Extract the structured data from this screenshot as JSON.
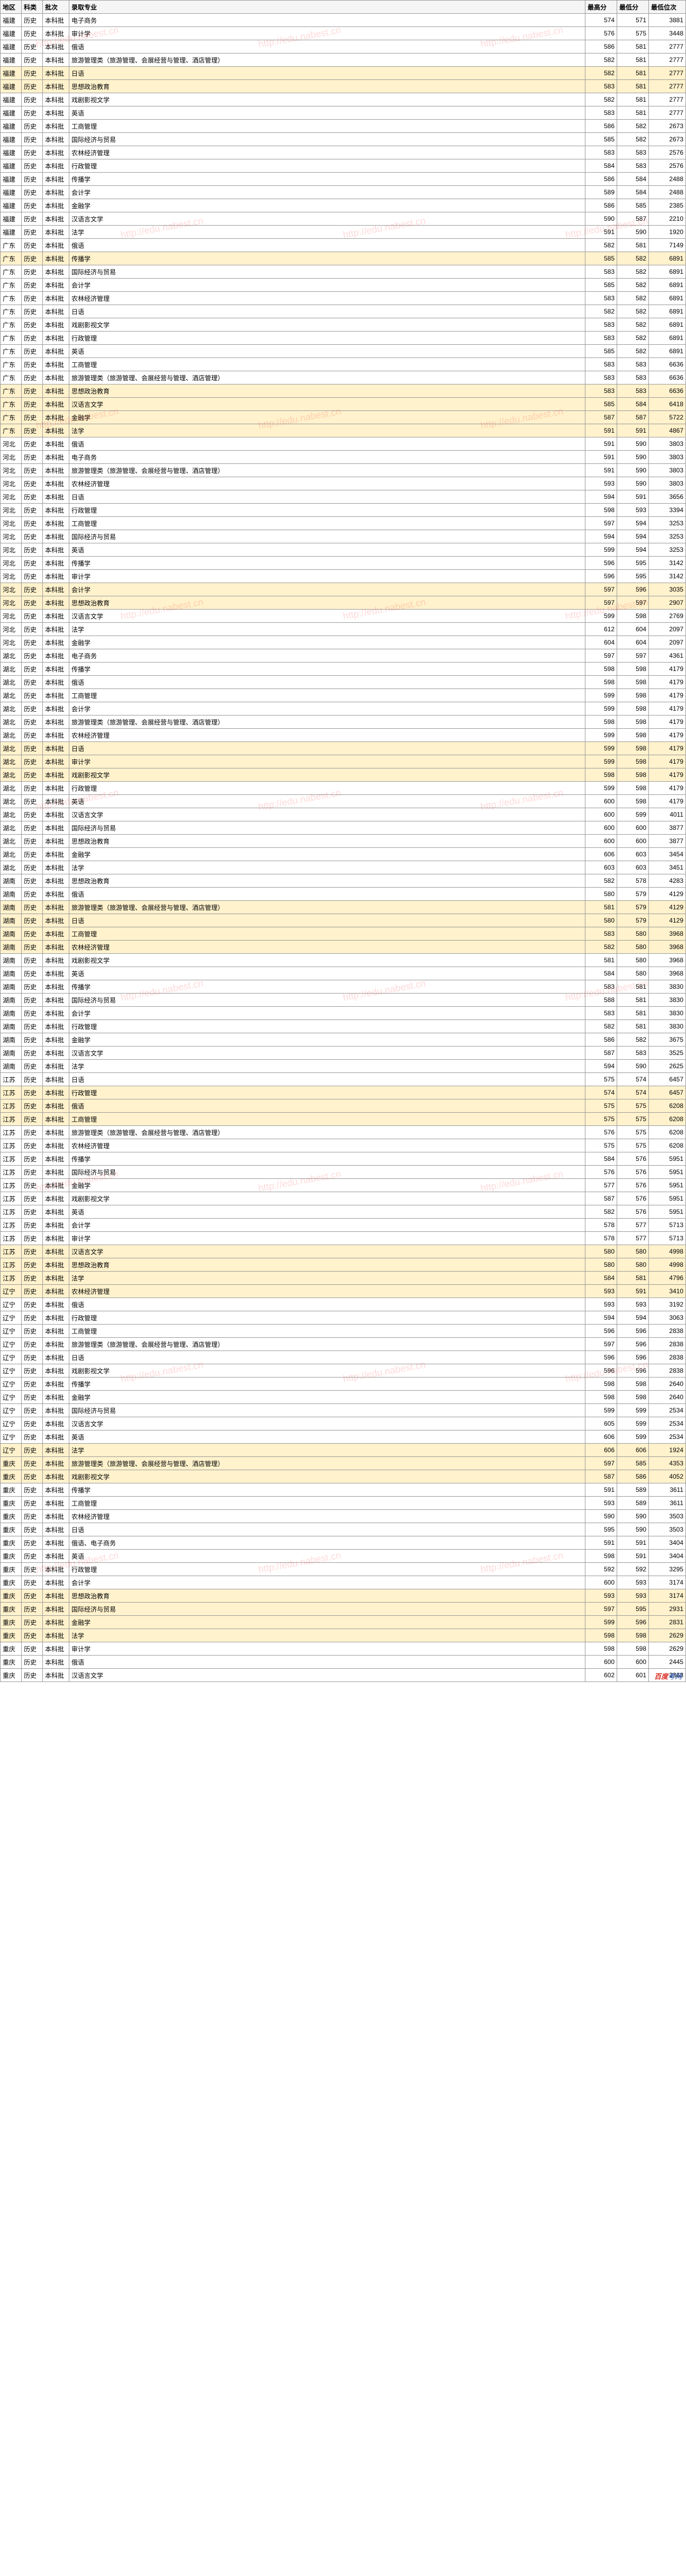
{
  "watermark_text": "http://edu.nabest.cn",
  "logo": {
    "text1": "百度",
    "text2": "考网"
  },
  "header": {
    "region": "地区",
    "subject": "科类",
    "batch": "批次",
    "major": "录取专业",
    "high": "最高分",
    "low": "最低分",
    "rank": "最低位次"
  },
  "rows": [
    {
      "r": "福建",
      "s": "历史",
      "b": "本科批",
      "m": "电子商务",
      "h": "574",
      "l": "571",
      "k": "3881"
    },
    {
      "r": "福建",
      "s": "历史",
      "b": "本科批",
      "m": "审计学",
      "h": "576",
      "l": "575",
      "k": "3448"
    },
    {
      "r": "福建",
      "s": "历史",
      "b": "本科批",
      "m": "俄语",
      "h": "586",
      "l": "581",
      "k": "2777"
    },
    {
      "r": "福建",
      "s": "历史",
      "b": "本科批",
      "m": "旅游管理类（旅游管理、会展经营与管理、酒店管理）",
      "h": "582",
      "l": "581",
      "k": "2777"
    },
    {
      "r": "福建",
      "s": "历史",
      "b": "本科批",
      "m": "日语",
      "h": "582",
      "l": "581",
      "k": "2777",
      "hl": 1
    },
    {
      "r": "福建",
      "s": "历史",
      "b": "本科批",
      "m": "思想政治教育",
      "h": "583",
      "l": "581",
      "k": "2777",
      "hl": 1
    },
    {
      "r": "福建",
      "s": "历史",
      "b": "本科批",
      "m": "戏剧影视文学",
      "h": "582",
      "l": "581",
      "k": "2777"
    },
    {
      "r": "福建",
      "s": "历史",
      "b": "本科批",
      "m": "英语",
      "h": "583",
      "l": "581",
      "k": "2777"
    },
    {
      "r": "福建",
      "s": "历史",
      "b": "本科批",
      "m": "工商管理",
      "h": "586",
      "l": "582",
      "k": "2673"
    },
    {
      "r": "福建",
      "s": "历史",
      "b": "本科批",
      "m": "国际经济与贸易",
      "h": "585",
      "l": "582",
      "k": "2673"
    },
    {
      "r": "福建",
      "s": "历史",
      "b": "本科批",
      "m": "农林经济管理",
      "h": "583",
      "l": "583",
      "k": "2576"
    },
    {
      "r": "福建",
      "s": "历史",
      "b": "本科批",
      "m": "行政管理",
      "h": "584",
      "l": "583",
      "k": "2576"
    },
    {
      "r": "福建",
      "s": "历史",
      "b": "本科批",
      "m": "传播学",
      "h": "586",
      "l": "584",
      "k": "2488"
    },
    {
      "r": "福建",
      "s": "历史",
      "b": "本科批",
      "m": "会计学",
      "h": "589",
      "l": "584",
      "k": "2488"
    },
    {
      "r": "福建",
      "s": "历史",
      "b": "本科批",
      "m": "金融学",
      "h": "586",
      "l": "585",
      "k": "2385"
    },
    {
      "r": "福建",
      "s": "历史",
      "b": "本科批",
      "m": "汉语言文学",
      "h": "590",
      "l": "587",
      "k": "2210"
    },
    {
      "r": "福建",
      "s": "历史",
      "b": "本科批",
      "m": "法学",
      "h": "591",
      "l": "590",
      "k": "1920"
    },
    {
      "r": "广东",
      "s": "历史",
      "b": "本科批",
      "m": "俄语",
      "h": "582",
      "l": "581",
      "k": "7149"
    },
    {
      "r": "广东",
      "s": "历史",
      "b": "本科批",
      "m": "传播学",
      "h": "585",
      "l": "582",
      "k": "6891",
      "hl": 1
    },
    {
      "r": "广东",
      "s": "历史",
      "b": "本科批",
      "m": "国际经济与贸易",
      "h": "583",
      "l": "582",
      "k": "6891"
    },
    {
      "r": "广东",
      "s": "历史",
      "b": "本科批",
      "m": "会计学",
      "h": "585",
      "l": "582",
      "k": "6891"
    },
    {
      "r": "广东",
      "s": "历史",
      "b": "本科批",
      "m": "农林经济管理",
      "h": "583",
      "l": "582",
      "k": "6891"
    },
    {
      "r": "广东",
      "s": "历史",
      "b": "本科批",
      "m": "日语",
      "h": "582",
      "l": "582",
      "k": "6891"
    },
    {
      "r": "广东",
      "s": "历史",
      "b": "本科批",
      "m": "戏剧影视文学",
      "h": "583",
      "l": "582",
      "k": "6891"
    },
    {
      "r": "广东",
      "s": "历史",
      "b": "本科批",
      "m": "行政管理",
      "h": "583",
      "l": "582",
      "k": "6891"
    },
    {
      "r": "广东",
      "s": "历史",
      "b": "本科批",
      "m": "英语",
      "h": "585",
      "l": "582",
      "k": "6891"
    },
    {
      "r": "广东",
      "s": "历史",
      "b": "本科批",
      "m": "工商管理",
      "h": "583",
      "l": "583",
      "k": "6636"
    },
    {
      "r": "广东",
      "s": "历史",
      "b": "本科批",
      "m": "旅游管理类（旅游管理、会展经营与管理、酒店管理）",
      "h": "583",
      "l": "583",
      "k": "6636"
    },
    {
      "r": "广东",
      "s": "历史",
      "b": "本科批",
      "m": "思想政治教育",
      "h": "583",
      "l": "583",
      "k": "6636",
      "hl": 1
    },
    {
      "r": "广东",
      "s": "历史",
      "b": "本科批",
      "m": "汉语言文学",
      "h": "585",
      "l": "584",
      "k": "6418",
      "hl": 1
    },
    {
      "r": "广东",
      "s": "历史",
      "b": "本科批",
      "m": "金融学",
      "h": "587",
      "l": "587",
      "k": "5722",
      "hl": 1
    },
    {
      "r": "广东",
      "s": "历史",
      "b": "本科批",
      "m": "法学",
      "h": "591",
      "l": "591",
      "k": "4867",
      "hl": 1
    },
    {
      "r": "河北",
      "s": "历史",
      "b": "本科批",
      "m": "俄语",
      "h": "591",
      "l": "590",
      "k": "3803"
    },
    {
      "r": "河北",
      "s": "历史",
      "b": "本科批",
      "m": "电子商务",
      "h": "591",
      "l": "590",
      "k": "3803"
    },
    {
      "r": "河北",
      "s": "历史",
      "b": "本科批",
      "m": "旅游管理类（旅游管理、会展经营与管理、酒店管理）",
      "h": "591",
      "l": "590",
      "k": "3803"
    },
    {
      "r": "河北",
      "s": "历史",
      "b": "本科批",
      "m": "农林经济管理",
      "h": "593",
      "l": "590",
      "k": "3803"
    },
    {
      "r": "河北",
      "s": "历史",
      "b": "本科批",
      "m": "日语",
      "h": "594",
      "l": "591",
      "k": "3656"
    },
    {
      "r": "河北",
      "s": "历史",
      "b": "本科批",
      "m": "行政管理",
      "h": "598",
      "l": "593",
      "k": "3394"
    },
    {
      "r": "河北",
      "s": "历史",
      "b": "本科批",
      "m": "工商管理",
      "h": "597",
      "l": "594",
      "k": "3253"
    },
    {
      "r": "河北",
      "s": "历史",
      "b": "本科批",
      "m": "国际经济与贸易",
      "h": "594",
      "l": "594",
      "k": "3253"
    },
    {
      "r": "河北",
      "s": "历史",
      "b": "本科批",
      "m": "英语",
      "h": "599",
      "l": "594",
      "k": "3253"
    },
    {
      "r": "河北",
      "s": "历史",
      "b": "本科批",
      "m": "传播学",
      "h": "596",
      "l": "595",
      "k": "3142"
    },
    {
      "r": "河北",
      "s": "历史",
      "b": "本科批",
      "m": "审计学",
      "h": "596",
      "l": "595",
      "k": "3142"
    },
    {
      "r": "河北",
      "s": "历史",
      "b": "本科批",
      "m": "会计学",
      "h": "597",
      "l": "596",
      "k": "3035",
      "hl": 1
    },
    {
      "r": "河北",
      "s": "历史",
      "b": "本科批",
      "m": "思想政治教育",
      "h": "597",
      "l": "597",
      "k": "2907",
      "hl": 1
    },
    {
      "r": "河北",
      "s": "历史",
      "b": "本科批",
      "m": "汉语言文学",
      "h": "599",
      "l": "598",
      "k": "2769"
    },
    {
      "r": "河北",
      "s": "历史",
      "b": "本科批",
      "m": "法学",
      "h": "612",
      "l": "604",
      "k": "2097"
    },
    {
      "r": "河北",
      "s": "历史",
      "b": "本科批",
      "m": "金融学",
      "h": "604",
      "l": "604",
      "k": "2097"
    },
    {
      "r": "湖北",
      "s": "历史",
      "b": "本科批",
      "m": "电子商务",
      "h": "597",
      "l": "597",
      "k": "4361"
    },
    {
      "r": "湖北",
      "s": "历史",
      "b": "本科批",
      "m": "传播学",
      "h": "598",
      "l": "598",
      "k": "4179"
    },
    {
      "r": "湖北",
      "s": "历史",
      "b": "本科批",
      "m": "俄语",
      "h": "598",
      "l": "598",
      "k": "4179"
    },
    {
      "r": "湖北",
      "s": "历史",
      "b": "本科批",
      "m": "工商管理",
      "h": "599",
      "l": "598",
      "k": "4179"
    },
    {
      "r": "湖北",
      "s": "历史",
      "b": "本科批",
      "m": "会计学",
      "h": "599",
      "l": "598",
      "k": "4179"
    },
    {
      "r": "湖北",
      "s": "历史",
      "b": "本科批",
      "m": "旅游管理类（旅游管理、会展经营与管理、酒店管理）",
      "h": "598",
      "l": "598",
      "k": "4179"
    },
    {
      "r": "湖北",
      "s": "历史",
      "b": "本科批",
      "m": "农林经济管理",
      "h": "599",
      "l": "598",
      "k": "4179"
    },
    {
      "r": "湖北",
      "s": "历史",
      "b": "本科批",
      "m": "日语",
      "h": "599",
      "l": "598",
      "k": "4179",
      "hl": 1
    },
    {
      "r": "湖北",
      "s": "历史",
      "b": "本科批",
      "m": "审计学",
      "h": "599",
      "l": "598",
      "k": "4179",
      "hl": 1
    },
    {
      "r": "湖北",
      "s": "历史",
      "b": "本科批",
      "m": "戏剧影视文学",
      "h": "598",
      "l": "598",
      "k": "4179",
      "hl": 1
    },
    {
      "r": "湖北",
      "s": "历史",
      "b": "本科批",
      "m": "行政管理",
      "h": "599",
      "l": "598",
      "k": "4179"
    },
    {
      "r": "湖北",
      "s": "历史",
      "b": "本科批",
      "m": "英语",
      "h": "600",
      "l": "598",
      "k": "4179"
    },
    {
      "r": "湖北",
      "s": "历史",
      "b": "本科批",
      "m": "汉语言文学",
      "h": "600",
      "l": "599",
      "k": "4011"
    },
    {
      "r": "湖北",
      "s": "历史",
      "b": "本科批",
      "m": "国际经济与贸易",
      "h": "600",
      "l": "600",
      "k": "3877"
    },
    {
      "r": "湖北",
      "s": "历史",
      "b": "本科批",
      "m": "思想政治教育",
      "h": "600",
      "l": "600",
      "k": "3877"
    },
    {
      "r": "湖北",
      "s": "历史",
      "b": "本科批",
      "m": "金融学",
      "h": "606",
      "l": "603",
      "k": "3454"
    },
    {
      "r": "湖北",
      "s": "历史",
      "b": "本科批",
      "m": "法学",
      "h": "603",
      "l": "603",
      "k": "3451"
    },
    {
      "r": "湖南",
      "s": "历史",
      "b": "本科批",
      "m": "思想政治教育",
      "h": "582",
      "l": "578",
      "k": "4283"
    },
    {
      "r": "湖南",
      "s": "历史",
      "b": "本科批",
      "m": "俄语",
      "h": "580",
      "l": "579",
      "k": "4129"
    },
    {
      "r": "湖南",
      "s": "历史",
      "b": "本科批",
      "m": "旅游管理类（旅游管理、会展经营与管理、酒店管理）",
      "h": "581",
      "l": "579",
      "k": "4129",
      "hl": 1
    },
    {
      "r": "湖南",
      "s": "历史",
      "b": "本科批",
      "m": "日语",
      "h": "580",
      "l": "579",
      "k": "4129",
      "hl": 1
    },
    {
      "r": "湖南",
      "s": "历史",
      "b": "本科批",
      "m": "工商管理",
      "h": "583",
      "l": "580",
      "k": "3968",
      "hl": 1
    },
    {
      "r": "湖南",
      "s": "历史",
      "b": "本科批",
      "m": "农林经济管理",
      "h": "582",
      "l": "580",
      "k": "3968",
      "hl": 1
    },
    {
      "r": "湖南",
      "s": "历史",
      "b": "本科批",
      "m": "戏剧影视文学",
      "h": "581",
      "l": "580",
      "k": "3968"
    },
    {
      "r": "湖南",
      "s": "历史",
      "b": "本科批",
      "m": "英语",
      "h": "584",
      "l": "580",
      "k": "3968"
    },
    {
      "r": "湖南",
      "s": "历史",
      "b": "本科批",
      "m": "传播学",
      "h": "583",
      "l": "581",
      "k": "3830"
    },
    {
      "r": "湖南",
      "s": "历史",
      "b": "本科批",
      "m": "国际经济与贸易",
      "h": "588",
      "l": "581",
      "k": "3830"
    },
    {
      "r": "湖南",
      "s": "历史",
      "b": "本科批",
      "m": "会计学",
      "h": "583",
      "l": "581",
      "k": "3830"
    },
    {
      "r": "湖南",
      "s": "历史",
      "b": "本科批",
      "m": "行政管理",
      "h": "582",
      "l": "581",
      "k": "3830"
    },
    {
      "r": "湖南",
      "s": "历史",
      "b": "本科批",
      "m": "金融学",
      "h": "586",
      "l": "582",
      "k": "3675"
    },
    {
      "r": "湖南",
      "s": "历史",
      "b": "本科批",
      "m": "汉语言文学",
      "h": "587",
      "l": "583",
      "k": "3525"
    },
    {
      "r": "湖南",
      "s": "历史",
      "b": "本科批",
      "m": "法学",
      "h": "594",
      "l": "590",
      "k": "2625"
    },
    {
      "r": "江苏",
      "s": "历史",
      "b": "本科批",
      "m": "日语",
      "h": "575",
      "l": "574",
      "k": "6457"
    },
    {
      "r": "江苏",
      "s": "历史",
      "b": "本科批",
      "m": "行政管理",
      "h": "574",
      "l": "574",
      "k": "6457",
      "hl": 1
    },
    {
      "r": "江苏",
      "s": "历史",
      "b": "本科批",
      "m": "俄语",
      "h": "575",
      "l": "575",
      "k": "6208",
      "hl": 1
    },
    {
      "r": "江苏",
      "s": "历史",
      "b": "本科批",
      "m": "工商管理",
      "h": "575",
      "l": "575",
      "k": "6208",
      "hl": 1
    },
    {
      "r": "江苏",
      "s": "历史",
      "b": "本科批",
      "m": "旅游管理类（旅游管理、会展经营与管理、酒店管理）",
      "h": "576",
      "l": "575",
      "k": "6208"
    },
    {
      "r": "江苏",
      "s": "历史",
      "b": "本科批",
      "m": "农林经济管理",
      "h": "575",
      "l": "575",
      "k": "6208"
    },
    {
      "r": "江苏",
      "s": "历史",
      "b": "本科批",
      "m": "传播学",
      "h": "584",
      "l": "576",
      "k": "5951"
    },
    {
      "r": "江苏",
      "s": "历史",
      "b": "本科批",
      "m": "国际经济与贸易",
      "h": "576",
      "l": "576",
      "k": "5951"
    },
    {
      "r": "江苏",
      "s": "历史",
      "b": "本科批",
      "m": "金融学",
      "h": "577",
      "l": "576",
      "k": "5951"
    },
    {
      "r": "江苏",
      "s": "历史",
      "b": "本科批",
      "m": "戏剧影视文学",
      "h": "587",
      "l": "576",
      "k": "5951"
    },
    {
      "r": "江苏",
      "s": "历史",
      "b": "本科批",
      "m": "英语",
      "h": "582",
      "l": "576",
      "k": "5951"
    },
    {
      "r": "江苏",
      "s": "历史",
      "b": "本科批",
      "m": "会计学",
      "h": "578",
      "l": "577",
      "k": "5713"
    },
    {
      "r": "江苏",
      "s": "历史",
      "b": "本科批",
      "m": "审计学",
      "h": "578",
      "l": "577",
      "k": "5713"
    },
    {
      "r": "江苏",
      "s": "历史",
      "b": "本科批",
      "m": "汉语言文学",
      "h": "580",
      "l": "580",
      "k": "4998",
      "hl": 1
    },
    {
      "r": "江苏",
      "s": "历史",
      "b": "本科批",
      "m": "思想政治教育",
      "h": "580",
      "l": "580",
      "k": "4998",
      "hl": 1
    },
    {
      "r": "江苏",
      "s": "历史",
      "b": "本科批",
      "m": "法学",
      "h": "584",
      "l": "581",
      "k": "4796",
      "hl": 1
    },
    {
      "r": "辽宁",
      "s": "历史",
      "b": "本科批",
      "m": "农林经济管理",
      "h": "593",
      "l": "591",
      "k": "3410",
      "hl": 1
    },
    {
      "r": "辽宁",
      "s": "历史",
      "b": "本科批",
      "m": "俄语",
      "h": "593",
      "l": "593",
      "k": "3192"
    },
    {
      "r": "辽宁",
      "s": "历史",
      "b": "本科批",
      "m": "行政管理",
      "h": "594",
      "l": "594",
      "k": "3063"
    },
    {
      "r": "辽宁",
      "s": "历史",
      "b": "本科批",
      "m": "工商管理",
      "h": "596",
      "l": "596",
      "k": "2838"
    },
    {
      "r": "辽宁",
      "s": "历史",
      "b": "本科批",
      "m": "旅游管理类（旅游管理、会展经营与管理、酒店管理）",
      "h": "597",
      "l": "596",
      "k": "2838"
    },
    {
      "r": "辽宁",
      "s": "历史",
      "b": "本科批",
      "m": "日语",
      "h": "596",
      "l": "596",
      "k": "2838"
    },
    {
      "r": "辽宁",
      "s": "历史",
      "b": "本科批",
      "m": "戏剧影视文学",
      "h": "596",
      "l": "596",
      "k": "2838"
    },
    {
      "r": "辽宁",
      "s": "历史",
      "b": "本科批",
      "m": "传播学",
      "h": "598",
      "l": "598",
      "k": "2640"
    },
    {
      "r": "辽宁",
      "s": "历史",
      "b": "本科批",
      "m": "金融学",
      "h": "598",
      "l": "598",
      "k": "2640"
    },
    {
      "r": "辽宁",
      "s": "历史",
      "b": "本科批",
      "m": "国际经济与贸易",
      "h": "599",
      "l": "599",
      "k": "2534"
    },
    {
      "r": "辽宁",
      "s": "历史",
      "b": "本科批",
      "m": "汉语言文学",
      "h": "605",
      "l": "599",
      "k": "2534"
    },
    {
      "r": "辽宁",
      "s": "历史",
      "b": "本科批",
      "m": "英语",
      "h": "606",
      "l": "599",
      "k": "2534"
    },
    {
      "r": "辽宁",
      "s": "历史",
      "b": "本科批",
      "m": "法学",
      "h": "606",
      "l": "606",
      "k": "1924",
      "hl": 1
    },
    {
      "r": "重庆",
      "s": "历史",
      "b": "本科批",
      "m": "旅游管理类（旅游管理、会展经营与管理、酒店管理）",
      "h": "597",
      "l": "585",
      "k": "4353",
      "hl": 1
    },
    {
      "r": "重庆",
      "s": "历史",
      "b": "本科批",
      "m": "戏剧影视文学",
      "h": "587",
      "l": "586",
      "k": "4052",
      "hl": 1
    },
    {
      "r": "重庆",
      "s": "历史",
      "b": "本科批",
      "m": "传播学",
      "h": "591",
      "l": "589",
      "k": "3611"
    },
    {
      "r": "重庆",
      "s": "历史",
      "b": "本科批",
      "m": "工商管理",
      "h": "593",
      "l": "589",
      "k": "3611"
    },
    {
      "r": "重庆",
      "s": "历史",
      "b": "本科批",
      "m": "农林经济管理",
      "h": "590",
      "l": "590",
      "k": "3503"
    },
    {
      "r": "重庆",
      "s": "历史",
      "b": "本科批",
      "m": "日语",
      "h": "595",
      "l": "590",
      "k": "3503"
    },
    {
      "r": "重庆",
      "s": "历史",
      "b": "本科批",
      "m": "俄语、电子商务",
      "h": "591",
      "l": "591",
      "k": "3404"
    },
    {
      "r": "重庆",
      "s": "历史",
      "b": "本科批",
      "m": "英语",
      "h": "598",
      "l": "591",
      "k": "3404"
    },
    {
      "r": "重庆",
      "s": "历史",
      "b": "本科批",
      "m": "行政管理",
      "h": "592",
      "l": "592",
      "k": "3295"
    },
    {
      "r": "重庆",
      "s": "历史",
      "b": "本科批",
      "m": "会计学",
      "h": "600",
      "l": "593",
      "k": "3174"
    },
    {
      "r": "重庆",
      "s": "历史",
      "b": "本科批",
      "m": "思想政治教育",
      "h": "593",
      "l": "593",
      "k": "3174",
      "hl": 1
    },
    {
      "r": "重庆",
      "s": "历史",
      "b": "本科批",
      "m": "国际经济与贸易",
      "h": "597",
      "l": "595",
      "k": "2931",
      "hl": 1
    },
    {
      "r": "重庆",
      "s": "历史",
      "b": "本科批",
      "m": "金融学",
      "h": "599",
      "l": "596",
      "k": "2831",
      "hl": 1
    },
    {
      "r": "重庆",
      "s": "历史",
      "b": "本科批",
      "m": "法学",
      "h": "598",
      "l": "598",
      "k": "2629",
      "hl": 1
    },
    {
      "r": "重庆",
      "s": "历史",
      "b": "本科批",
      "m": "审计学",
      "h": "598",
      "l": "598",
      "k": "2629"
    },
    {
      "r": "重庆",
      "s": "历史",
      "b": "本科批",
      "m": "俄语",
      "h": "600",
      "l": "600",
      "k": "2445"
    },
    {
      "r": "重庆",
      "s": "历史",
      "b": "本科批",
      "m": "汉语言文学",
      "h": "602",
      "l": "601",
      "k": "2368"
    }
  ]
}
